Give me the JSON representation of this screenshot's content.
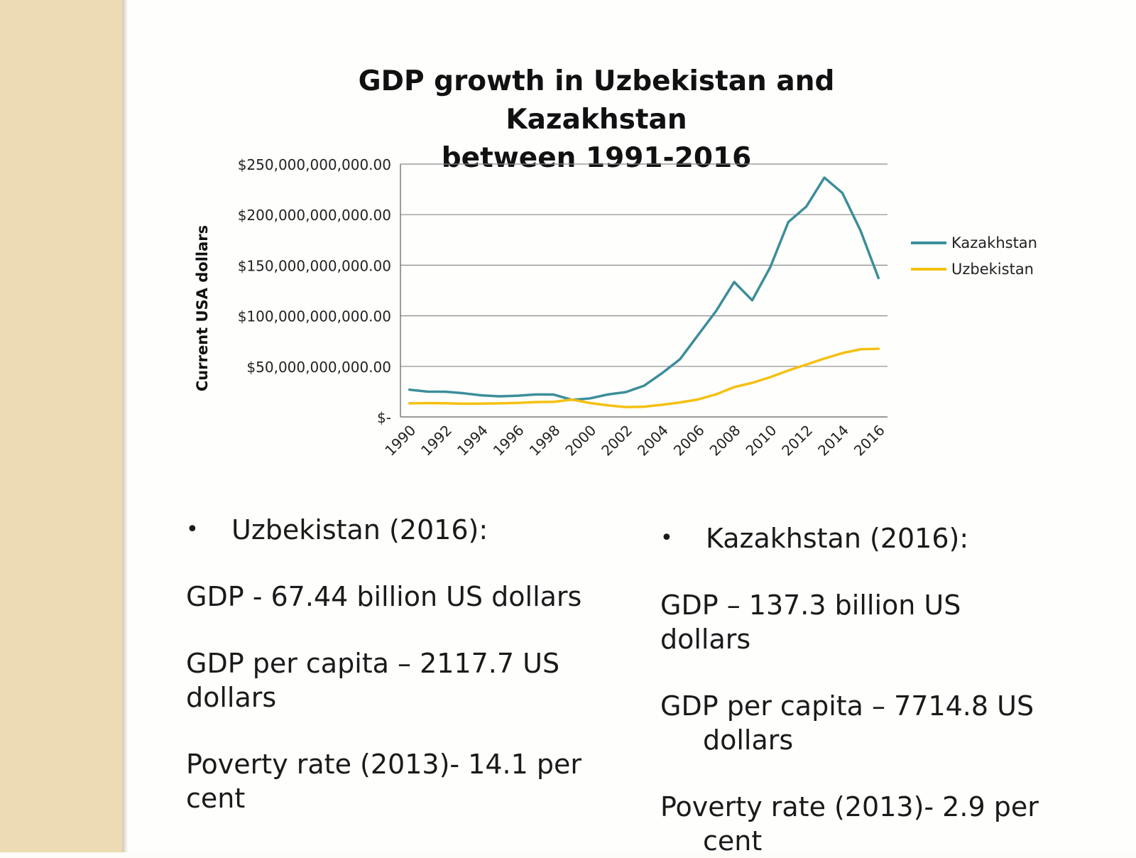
{
  "chart_data": {
    "type": "line",
    "title_lines": [
      "GDP growth in Uzbekistan and Kazakhstan",
      "between 1991-2016"
    ],
    "ylabel": "Current USA dollars",
    "xlabel": "",
    "ylim": [
      0,
      250000000000
    ],
    "yticks": [
      {
        "value": 0,
        "label": "$-"
      },
      {
        "value": 50000000000,
        "label": "$50,000,000,000.00"
      },
      {
        "value": 100000000000,
        "label": "$100,000,000,000.00"
      },
      {
        "value": 150000000000,
        "label": "$150,000,000,000.00"
      },
      {
        "value": 200000000000,
        "label": "$200,000,000,000.00"
      },
      {
        "value": 250000000000,
        "label": "$250,000,000,000.00"
      }
    ],
    "xticks": [
      "1990",
      "1992",
      "1994",
      "1996",
      "1998",
      "2000",
      "2002",
      "2004",
      "2006",
      "2008",
      "2010",
      "2012",
      "2014",
      "2016"
    ],
    "grid": true,
    "legend_position": "right",
    "x": [
      1990,
      1991,
      1992,
      1993,
      1994,
      1995,
      1996,
      1997,
      1998,
      1999,
      2000,
      2001,
      2002,
      2003,
      2004,
      2005,
      2006,
      2007,
      2008,
      2009,
      2010,
      2011,
      2012,
      2013,
      2014,
      2015,
      2016
    ],
    "series": [
      {
        "name": "Kazakhstan",
        "color": "#3c8e9a",
        "values": [
          26.9,
          25,
          24.9,
          23.4,
          21.3,
          20.4,
          21,
          22.2,
          22.1,
          16.9,
          18.3,
          22.2,
          24.6,
          30.8,
          43.2,
          57.1,
          81,
          104.8,
          133.4,
          115.3,
          148,
          192.6,
          208,
          236.6,
          221.4,
          184.4,
          137.3
        ]
      },
      {
        "name": "Uzbekistan",
        "color": "#f5c011",
        "values": [
          13.4,
          13.7,
          13.5,
          13.1,
          13.2,
          13.4,
          13.9,
          14.7,
          14.9,
          17.1,
          13.8,
          11.4,
          9.7,
          10.1,
          12,
          14.3,
          17.3,
          22.3,
          29.5,
          33.7,
          39.3,
          45.9,
          51.8,
          57.7,
          63.1,
          66.9,
          67.4
        ]
      }
    ]
  },
  "stats": {
    "uzbekistan": {
      "heading": "Uzbekistan (2016):",
      "gdp": "GDP - 67.44 billion US dollars",
      "per_capita": "GDP per capita – 2117.7 US dollars",
      "poverty": "Poverty rate (2013)- 14.1 per cent"
    },
    "kazakhstan": {
      "heading": "Kazakhstan (2016):",
      "gdp": "GDP – 137.3 billion US dollars",
      "per_capita": "GDP per capita – 7714.8 US dollars",
      "poverty": "Poverty rate (2013)- 2.9 per cent"
    }
  },
  "bullet_glyph": "•"
}
